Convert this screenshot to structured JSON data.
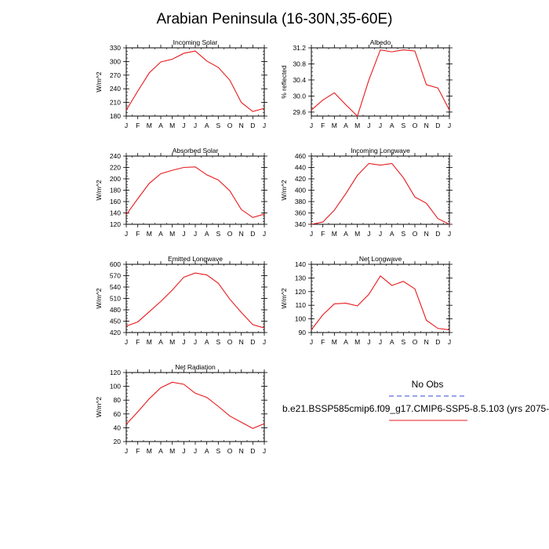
{
  "title": "Arabian Peninsula (16-30N,35-60E)",
  "months": [
    "J",
    "F",
    "M",
    "A",
    "M",
    "J",
    "J",
    "A",
    "S",
    "O",
    "N",
    "D",
    "J"
  ],
  "colors": {
    "model": "#e8191c",
    "obs": "#3a44d6",
    "axis": "#000000"
  },
  "legend": {
    "obs_label": "No Obs",
    "model_label": "b.e21.BSSP585cmip6.f09_g17.CMIP6-SSP5-8.5.103 (yrs 2075-"
  },
  "chart_data": [
    {
      "type": "line",
      "title": "Incoming Solar",
      "ylabel": "W/m^2",
      "ylim": [
        180,
        330
      ],
      "yticks": [
        180,
        210,
        240,
        270,
        300,
        330
      ],
      "series": [
        {
          "values": [
            193,
            235,
            275,
            299,
            305,
            318,
            323,
            301,
            287,
            259,
            210,
            190,
            197
          ]
        }
      ]
    },
    {
      "type": "line",
      "title": "Albedo",
      "ylabel": "% reflected",
      "ylim": [
        29.5,
        31.2
      ],
      "yticks": [
        29.6,
        30.0,
        30.4,
        30.8,
        31.2
      ],
      "series": [
        {
          "values": [
            29.65,
            29.9,
            30.08,
            29.78,
            29.5,
            30.4,
            31.15,
            31.1,
            31.15,
            31.12,
            30.28,
            30.2,
            29.65
          ]
        }
      ]
    },
    {
      "type": "line",
      "title": "Absorbed Solar",
      "ylabel": "W/m^2",
      "ylim": [
        120,
        240
      ],
      "yticks": [
        120,
        140,
        160,
        180,
        200,
        220,
        240
      ],
      "series": [
        {
          "values": [
            137,
            165,
            192,
            209,
            215,
            220,
            221,
            207,
            198,
            179,
            146,
            132,
            138
          ]
        }
      ]
    },
    {
      "type": "line",
      "title": "Incoming Longwave",
      "ylabel": "W/m^2",
      "ylim": [
        340,
        460
      ],
      "yticks": [
        340,
        360,
        380,
        400,
        420,
        440,
        460
      ],
      "series": [
        {
          "values": [
            340,
            344,
            365,
            394,
            426,
            447,
            444,
            447,
            422,
            388,
            377,
            350,
            340
          ]
        }
      ]
    },
    {
      "type": "line",
      "title": "Emitted Longwave",
      "ylabel": "W/m^2",
      "ylim": [
        420,
        600
      ],
      "yticks": [
        420,
        450,
        480,
        510,
        540,
        570,
        600
      ],
      "series": [
        {
          "values": [
            437,
            448,
            475,
            502,
            532,
            566,
            577,
            572,
            550,
            508,
            473,
            441,
            432
          ]
        }
      ]
    },
    {
      "type": "line",
      "title": "Net Longwave",
      "ylabel": "W/m^2",
      "ylim": [
        90,
        140
      ],
      "yticks": [
        90,
        100,
        110,
        120,
        130,
        140
      ],
      "series": [
        {
          "values": [
            92,
            103,
            111,
            111.5,
            109.5,
            118,
            131.5,
            124.5,
            127.5,
            122,
            99,
            93,
            92
          ]
        }
      ]
    },
    {
      "type": "line",
      "title": "Net Radiation",
      "ylabel": "W/m^2",
      "ylim": [
        20,
        120
      ],
      "yticks": [
        20,
        40,
        60,
        80,
        100,
        120
      ],
      "series": [
        {
          "values": [
            45,
            63,
            82,
            98,
            106,
            103,
            90,
            84,
            71,
            57,
            48,
            39,
            46
          ]
        }
      ]
    }
  ]
}
